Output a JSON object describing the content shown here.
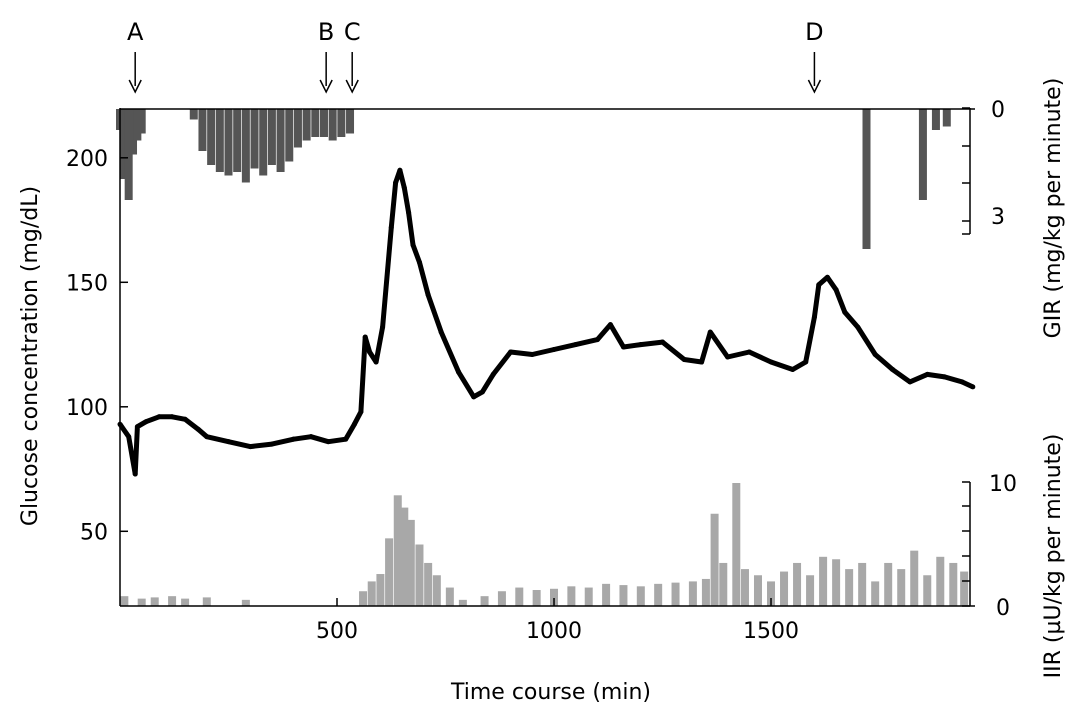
{
  "chart_data": {
    "type": "line",
    "xlabel": "Time course (min)",
    "ylabel": "Glucose concentration (mg/dL)",
    "y2label_top": "GIR (mg/kg per minute)",
    "y2label_bottom": "IIR (µU/kg per minute)",
    "xlim": [
      0,
      1970
    ],
    "ylim": [
      20,
      220
    ],
    "x_ticks": [
      500,
      1000,
      1500
    ],
    "x_tick_labels": [
      "500",
      "1000",
      "1500"
    ],
    "y_ticks": [
      200,
      150,
      100,
      50
    ],
    "y_tick_labels": [
      "200",
      "150",
      "100",
      "50"
    ],
    "gir_ticks": [
      "0",
      "3"
    ],
    "iir_ticks": [
      "10",
      "0"
    ],
    "gir_range": [
      0,
      4
    ],
    "iir_range": [
      0,
      10
    ],
    "grid": false,
    "colors": {
      "glucose": "#000000",
      "gir": "#555555",
      "iir": "#a8a8a8",
      "axes": "#000000"
    },
    "events": [
      {
        "label": "A",
        "x": 35
      },
      {
        "label": "B",
        "x": 475
      },
      {
        "label": "C",
        "x": 535
      },
      {
        "label": "D",
        "x": 1600
      }
    ],
    "glucose": {
      "x": [
        0,
        20,
        35,
        40,
        60,
        90,
        120,
        150,
        180,
        200,
        250,
        300,
        350,
        400,
        440,
        480,
        520,
        540,
        555,
        565,
        575,
        590,
        605,
        625,
        635,
        645,
        655,
        665,
        675,
        690,
        710,
        740,
        780,
        815,
        835,
        860,
        900,
        950,
        1000,
        1050,
        1100,
        1130,
        1160,
        1200,
        1250,
        1300,
        1340,
        1360,
        1400,
        1450,
        1500,
        1550,
        1580,
        1600,
        1610,
        1630,
        1650,
        1670,
        1700,
        1740,
        1780,
        1820,
        1860,
        1900,
        1940,
        1965
      ],
      "y": [
        93,
        88,
        73,
        92,
        94,
        96,
        96,
        95,
        91,
        88,
        86,
        84,
        85,
        87,
        88,
        86,
        87,
        93,
        98,
        128,
        122,
        118,
        132,
        172,
        190,
        195,
        188,
        178,
        165,
        158,
        145,
        130,
        114,
        104,
        106,
        113,
        122,
        121,
        123,
        125,
        127,
        133,
        124,
        125,
        126,
        119,
        118,
        130,
        120,
        122,
        118,
        115,
        118,
        136,
        149,
        152,
        147,
        138,
        132,
        121,
        115,
        110,
        113,
        112,
        110,
        108
      ]
    },
    "gir": {
      "x": [
        0,
        10,
        20,
        30,
        40,
        50,
        170,
        190,
        210,
        230,
        250,
        270,
        290,
        310,
        330,
        350,
        370,
        390,
        410,
        430,
        450,
        470,
        490,
        510,
        530,
        1720,
        1850,
        1880,
        1905
      ],
      "y": [
        0.6,
        2.0,
        2.6,
        1.3,
        0.9,
        0.7,
        0.3,
        1.2,
        1.6,
        1.8,
        1.9,
        1.8,
        2.1,
        1.7,
        1.9,
        1.6,
        1.8,
        1.5,
        1.1,
        0.9,
        0.8,
        0.8,
        0.9,
        0.8,
        0.7,
        4.0,
        2.6,
        0.6,
        0.5
      ]
    },
    "iir": {
      "x": [
        10,
        50,
        80,
        120,
        150,
        200,
        290,
        560,
        580,
        600,
        620,
        640,
        655,
        670,
        690,
        710,
        730,
        760,
        790,
        840,
        880,
        920,
        960,
        1000,
        1040,
        1080,
        1120,
        1160,
        1200,
        1240,
        1280,
        1320,
        1350,
        1370,
        1390,
        1420,
        1440,
        1470,
        1500,
        1530,
        1560,
        1590,
        1620,
        1650,
        1680,
        1710,
        1740,
        1770,
        1800,
        1830,
        1860,
        1890,
        1920,
        1945
      ],
      "y": [
        0.8,
        0.6,
        0.7,
        0.8,
        0.6,
        0.7,
        0.5,
        1.2,
        2.0,
        2.6,
        5.5,
        9.0,
        8.0,
        7.0,
        5.0,
        3.5,
        2.5,
        1.5,
        0.5,
        0.8,
        1.2,
        1.5,
        1.3,
        1.4,
        1.6,
        1.5,
        1.8,
        1.7,
        1.6,
        1.8,
        1.9,
        2.0,
        2.2,
        7.5,
        3.5,
        10.0,
        3.0,
        2.5,
        2.0,
        2.8,
        3.5,
        2.5,
        4.0,
        3.8,
        3.0,
        3.5,
        2.0,
        3.5,
        3.0,
        4.5,
        2.5,
        4.0,
        3.5,
        2.8
      ]
    }
  }
}
